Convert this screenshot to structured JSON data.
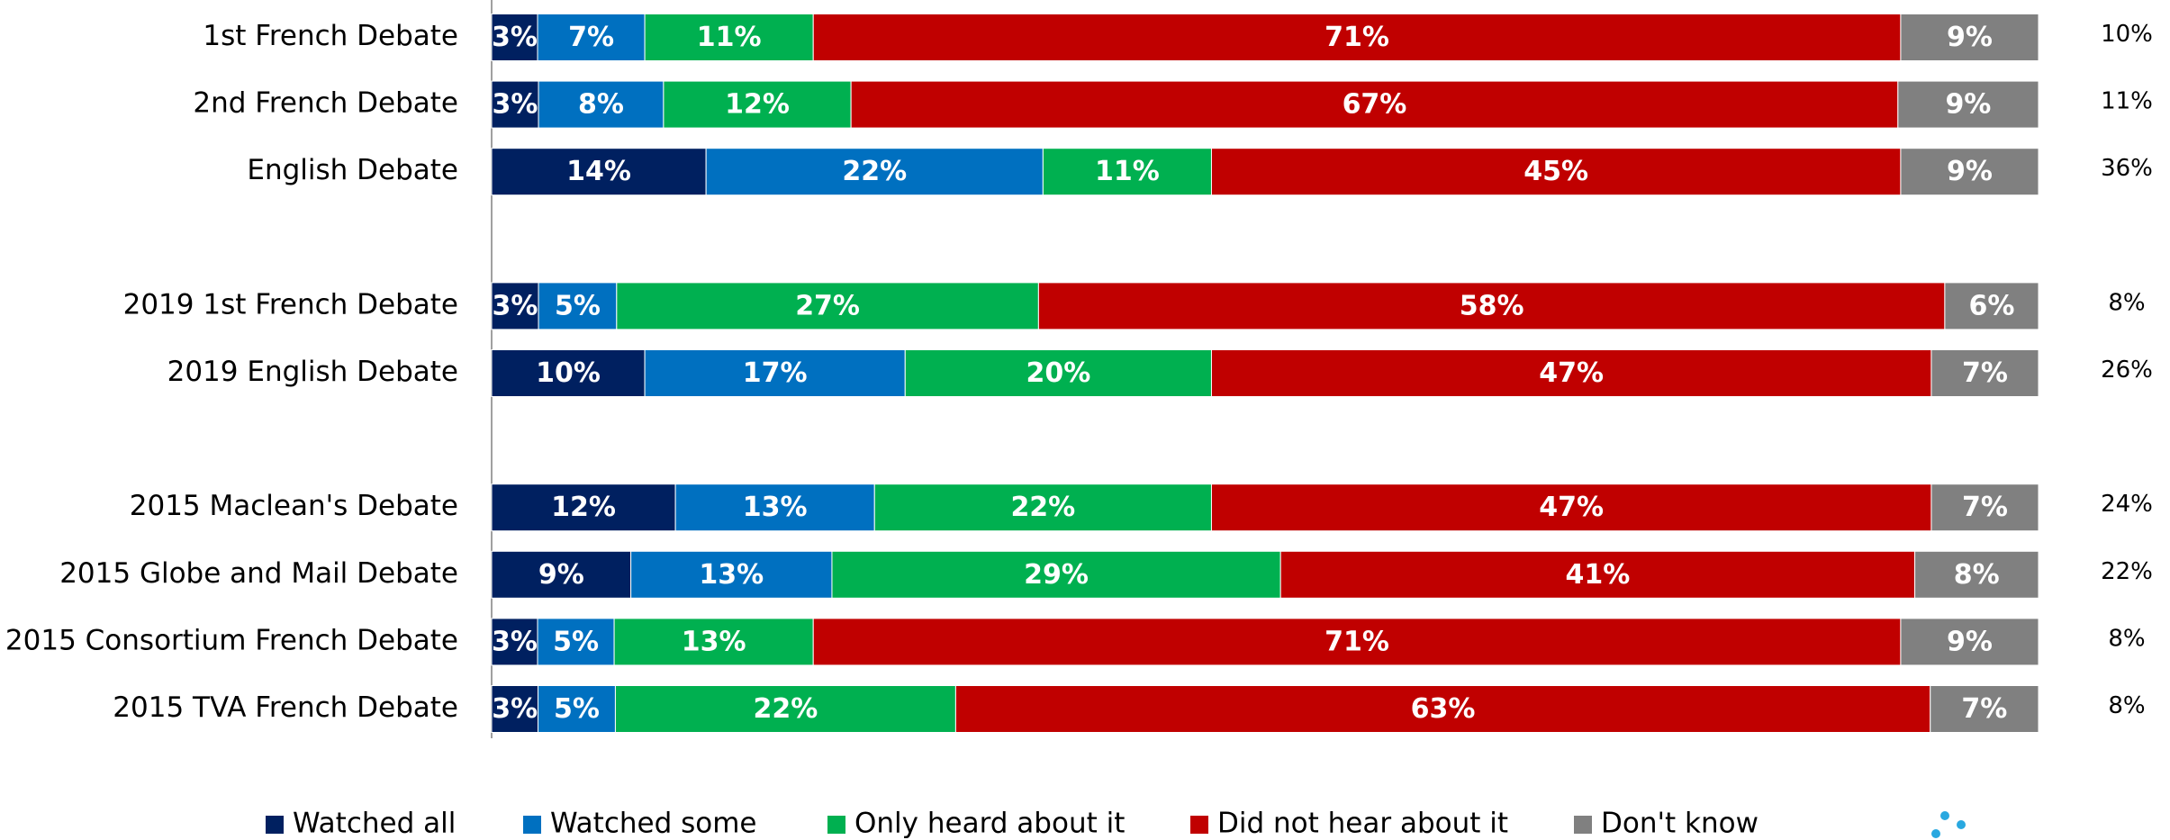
{
  "chart_data": {
    "type": "bar",
    "orientation": "horizontal",
    "stacked": "percent",
    "categories": [
      "1st French Debate",
      "2nd French Debate",
      "English Debate",
      null,
      "2019 1st French Debate",
      "2019 English Debate",
      null,
      "2015 Maclean's Debate",
      "2015 Globe and Mail Debate",
      "2015 Consortium French Debate",
      "2015 TVA French Debate"
    ],
    "series": [
      {
        "name": "Watched all",
        "color": "#002060",
        "values": [
          3,
          3,
          14,
          null,
          3,
          10,
          null,
          12,
          9,
          3,
          3
        ],
        "value_labels": [
          "3%",
          "3%",
          "14%",
          null,
          "3%",
          "10%",
          null,
          "12%",
          "9%",
          "3%",
          "3%"
        ]
      },
      {
        "name": "Watched some",
        "color": "#0070c0",
        "values": [
          7,
          8,
          22,
          null,
          5,
          17,
          null,
          13,
          13,
          5,
          5
        ],
        "value_labels": [
          "7%",
          "8%",
          "22%",
          null,
          "5%",
          "17%",
          null,
          "13%",
          "13%",
          "5%",
          "5%"
        ]
      },
      {
        "name": "Only heard about it",
        "color": "#00b050",
        "values": [
          11,
          12,
          11,
          null,
          27,
          20,
          null,
          22,
          29,
          13,
          22
        ],
        "value_labels": [
          "11%",
          "12%",
          "11%",
          null,
          "27%",
          "20%",
          null,
          "22%",
          "29%",
          "13%",
          "22%"
        ]
      },
      {
        "name": "Did not hear about it",
        "color": "#c00000",
        "values": [
          71,
          67,
          45,
          null,
          58,
          47,
          null,
          47,
          41,
          71,
          63
        ],
        "value_labels": [
          "71%",
          "67%",
          "45%",
          null,
          "58%",
          "47%",
          null,
          "47%",
          "41%",
          "71%",
          "63%"
        ]
      },
      {
        "name": "Don't know",
        "color": "#808080",
        "values": [
          9,
          9,
          9,
          null,
          6,
          7,
          null,
          7,
          8,
          9,
          7
        ],
        "value_labels": [
          "9%",
          "9%",
          "9%",
          null,
          "6%",
          "7%",
          null,
          "7%",
          "8%",
          "9%",
          "7%"
        ]
      }
    ],
    "totals": {
      "values": [
        10,
        11,
        36,
        null,
        8,
        26,
        null,
        24,
        22,
        8,
        8
      ],
      "value_labels": [
        "10%",
        "11%",
        "36%",
        null,
        "8%",
        "26%",
        null,
        "24%",
        "22%",
        "8%",
        "8%"
      ]
    },
    "legend": "bottom"
  }
}
